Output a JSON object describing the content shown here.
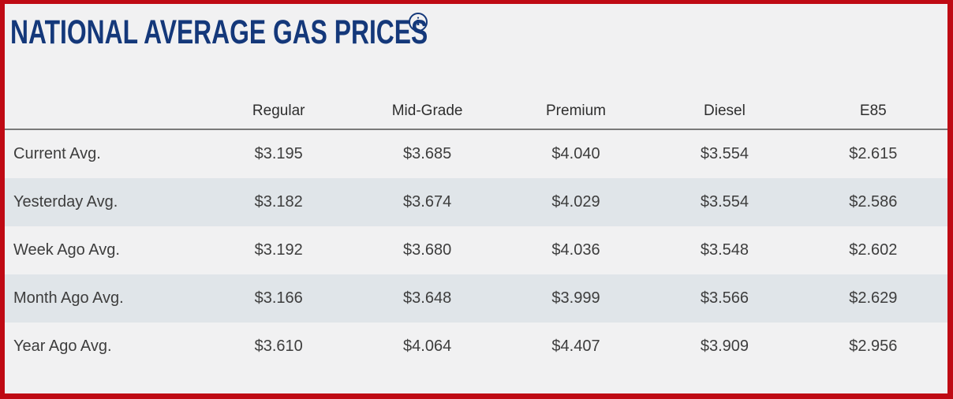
{
  "panel": {
    "title": "NATIONAL AVERAGE GAS PRICES",
    "info_icon_glyph": "i",
    "colors": {
      "frame_border": "#bf0a14",
      "background": "#f1f1f2",
      "alt_row": "#e0e5e9",
      "title_navy": "#14387a",
      "header_rule": "#7a7a7a",
      "text": "#3d3d3d"
    }
  },
  "table": {
    "columns": [
      "Regular",
      "Mid-Grade",
      "Premium",
      "Diesel",
      "E85"
    ],
    "rows": [
      {
        "label": "Current Avg.",
        "values": [
          "$3.195",
          "$3.685",
          "$4.040",
          "$3.554",
          "$2.615"
        ]
      },
      {
        "label": "Yesterday Avg.",
        "values": [
          "$3.182",
          "$3.674",
          "$4.029",
          "$3.554",
          "$2.586"
        ]
      },
      {
        "label": "Week Ago Avg.",
        "values": [
          "$3.192",
          "$3.680",
          "$4.036",
          "$3.548",
          "$2.602"
        ]
      },
      {
        "label": "Month Ago Avg.",
        "values": [
          "$3.166",
          "$3.648",
          "$3.999",
          "$3.566",
          "$2.629"
        ]
      },
      {
        "label": "Year Ago Avg.",
        "values": [
          "$3.610",
          "$4.064",
          "$4.407",
          "$3.909",
          "$2.956"
        ]
      }
    ]
  },
  "chart_data": {
    "type": "table",
    "title": "NATIONAL AVERAGE GAS PRICES",
    "categories": [
      "Regular",
      "Mid-Grade",
      "Premium",
      "Diesel",
      "E85"
    ],
    "series": [
      {
        "name": "Current Avg.",
        "values": [
          3.195,
          3.685,
          4.04,
          3.554,
          2.615
        ]
      },
      {
        "name": "Yesterday Avg.",
        "values": [
          3.182,
          3.674,
          4.029,
          3.554,
          2.586
        ]
      },
      {
        "name": "Week Ago Avg.",
        "values": [
          3.192,
          3.68,
          4.036,
          3.548,
          2.602
        ]
      },
      {
        "name": "Month Ago Avg.",
        "values": [
          3.166,
          3.648,
          3.999,
          3.566,
          2.629
        ]
      },
      {
        "name": "Year Ago Avg.",
        "values": [
          3.61,
          4.064,
          4.407,
          3.909,
          2.956
        ]
      }
    ]
  }
}
